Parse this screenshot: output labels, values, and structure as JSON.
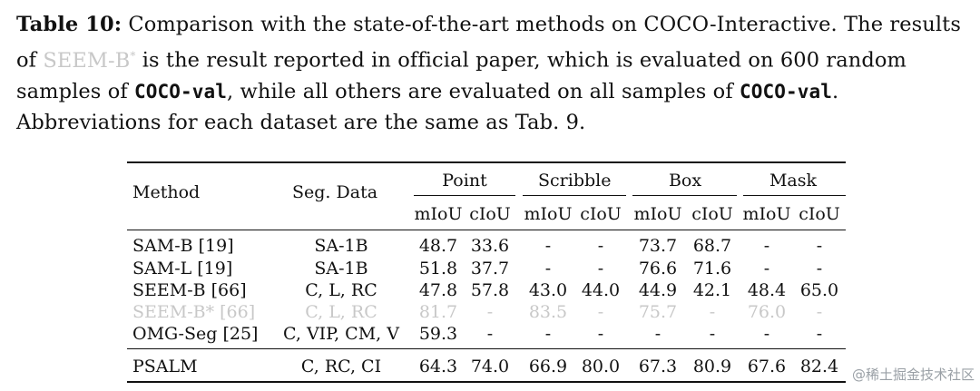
{
  "caption": {
    "label": "Table 10:",
    "part1": " Comparison with the state-of-the-art methods on COCO-Interactive. The results of ",
    "faded_method": "SEEM-B",
    "faded_sup": "*",
    "part2": " is the result reported in official paper, which is evaluated on 600 random samples of ",
    "code1": "COCO-val",
    "part3": ", while all others are evaluated on all samples of ",
    "code2": "COCO-val",
    "part4": ". Abbreviations for each dataset are the same as Tab. 9."
  },
  "table": {
    "headers": {
      "method": "Method",
      "seg_data": "Seg. Data",
      "groups": [
        "Point",
        "Scribble",
        "Box",
        "Mask"
      ],
      "sub": [
        "mIoU",
        "cIoU"
      ]
    },
    "rows": [
      {
        "method": "SAM-B [19]",
        "seg": "SA-1B",
        "vals": [
          "48.7",
          "33.6",
          "-",
          "-",
          "73.7",
          "68.7",
          "-",
          "-"
        ],
        "faded": false
      },
      {
        "method": "SAM-L [19]",
        "seg": "SA-1B",
        "vals": [
          "51.8",
          "37.7",
          "-",
          "-",
          "76.6",
          "71.6",
          "-",
          "-"
        ],
        "faded": false
      },
      {
        "method": "SEEM-B [66]",
        "seg": "C, L, RC",
        "vals": [
          "47.8",
          "57.8",
          "43.0",
          "44.0",
          "44.9",
          "42.1",
          "48.4",
          "65.0"
        ],
        "faded": false
      },
      {
        "method": "SEEM-B* [66]",
        "seg": "C, L, RC",
        "vals": [
          "81.7",
          "-",
          "83.5",
          "-",
          "75.7",
          "-",
          "76.0",
          "-"
        ],
        "faded": true
      },
      {
        "method": "OMG-Seg [25]",
        "seg": "C, VIP, CM, V",
        "vals": [
          "59.3",
          "-",
          "-",
          "-",
          "-",
          "-",
          "-",
          "-"
        ],
        "faded": false
      }
    ],
    "final": {
      "method": "PSALM",
      "seg": "C, RC, CI",
      "vals": [
        "64.3",
        "74.0",
        "66.9",
        "80.0",
        "67.3",
        "80.9",
        "67.6",
        "82.4"
      ]
    }
  },
  "watermark": "@稀土掘金技术社区"
}
